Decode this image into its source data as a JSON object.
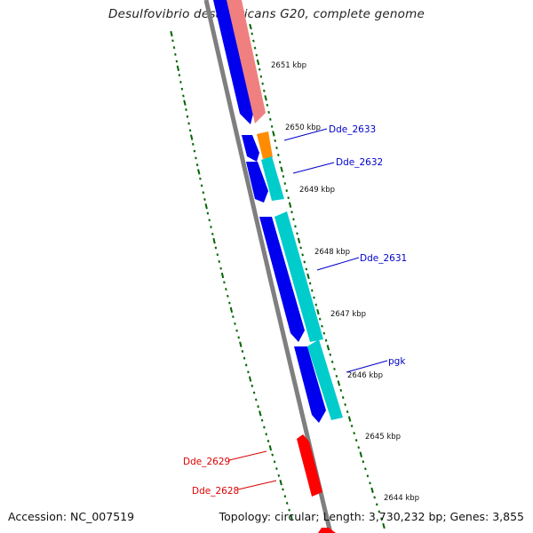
{
  "title": "Desulfovibrio desulfuricans G20, complete genome",
  "footer": {
    "accession": "Accession: NC_007519",
    "stats": "Topology: circular; Length: 3,730,232 bp; Genes: 3,855"
  },
  "colors": {
    "backbone": "#7f7f7f",
    "forward_cds": "#0000ee",
    "reverse_cds": "#ee0000",
    "rrna_pink": "#f08080",
    "orange": "#ff8c00",
    "cyan": "#00cccc",
    "tick_green": "#006400",
    "label_blue": "#0000cc",
    "label_red": "#dd0000"
  },
  "kbp_labels": [
    "2651 kbp",
    "2650 kbp",
    "2649 kbp",
    "2648 kbp",
    "2647 kbp",
    "2646 kbp",
    "2645 kbp",
    "2644 kbp"
  ],
  "gene_labels": {
    "dde_2633": "Dde_2633",
    "dde_2632": "Dde_2632",
    "dde_2631": "Dde_2631",
    "pgk": "pgk",
    "dde_2629": "Dde_2629",
    "dde_2628": "Dde_2628"
  }
}
